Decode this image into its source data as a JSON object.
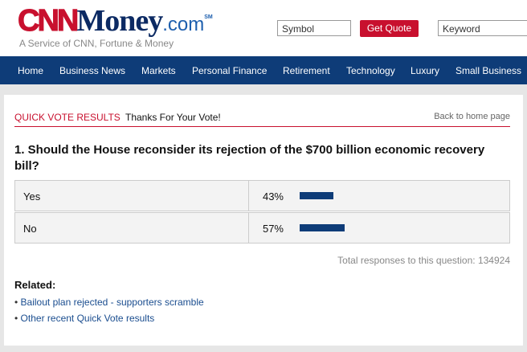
{
  "header": {
    "logo": {
      "cnn": "CNN",
      "money": "Money",
      "com": ".com",
      "sm": "SM"
    },
    "tagline": "A Service of CNN, Fortune & Money",
    "symbol_placeholder": "Symbol",
    "quote_button": "Get Quote",
    "keyword_placeholder": "Keyword"
  },
  "nav": [
    "Home",
    "Business News",
    "Markets",
    "Personal Finance",
    "Retirement",
    "Technology",
    "Luxury",
    "Small Business"
  ],
  "poll": {
    "section": "QUICK VOTE RESULTS",
    "thanks": "Thanks For Your Vote!",
    "back_link": "Back to home page",
    "question": "1. Should the House reconsider its rejection of the $700 billion economic recovery bill?",
    "results": [
      {
        "answer": "Yes",
        "value": 43,
        "value_label": "43%"
      },
      {
        "answer": "No",
        "value": 57,
        "value_label": "57%"
      }
    ],
    "total_label": "Total responses to this question:",
    "total": 134924
  },
  "related": {
    "title": "Related:",
    "links": [
      "Bailout plan rejected - supporters scramble",
      "Other recent Quick Vote results"
    ]
  }
}
